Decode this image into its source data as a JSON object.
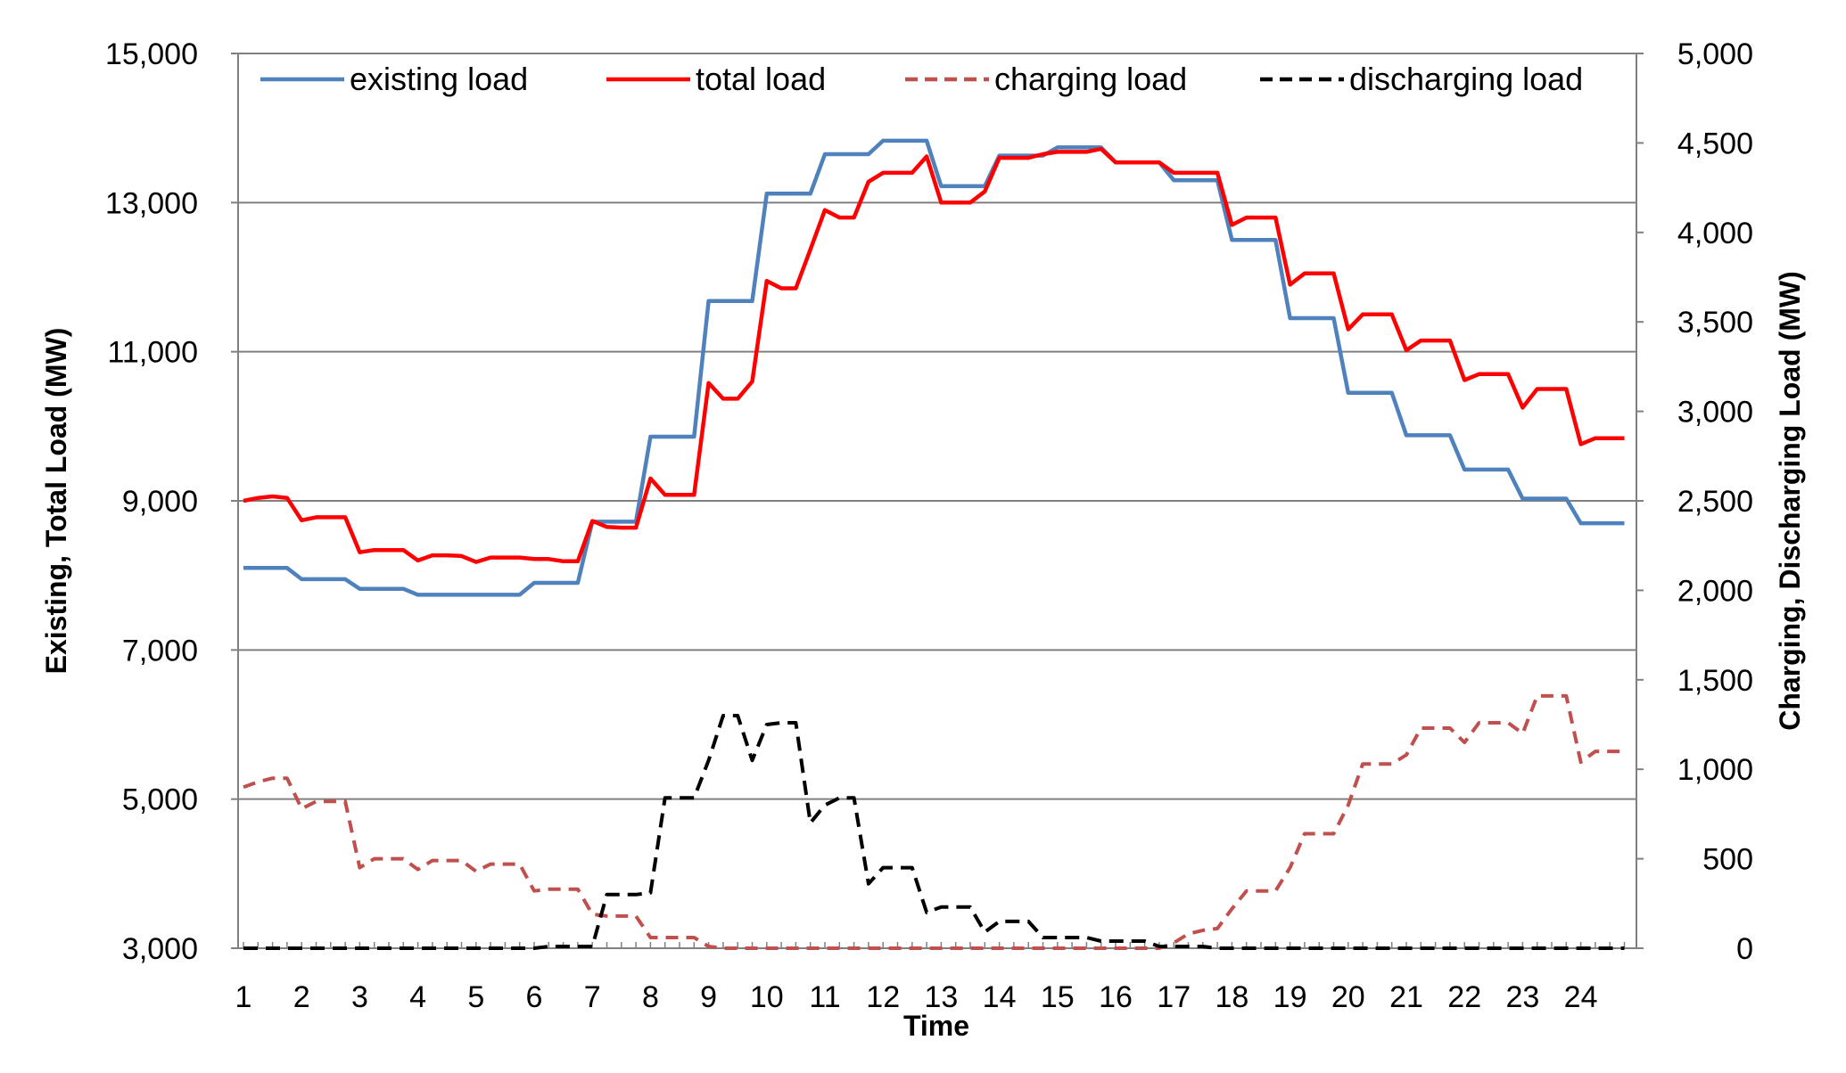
{
  "chart_data": {
    "type": "line",
    "xlabel": "Time",
    "ylabel_left": "Existing, Total Load (MW)",
    "ylabel_right": "Charging, Discharging Load (MW)",
    "x_tick_labels": [
      "1",
      "2",
      "3",
      "4",
      "5",
      "6",
      "7",
      "8",
      "9",
      "10",
      "11",
      "12",
      "13",
      "14",
      "15",
      "16",
      "17",
      "18",
      "19",
      "20",
      "21",
      "22",
      "23",
      "24"
    ],
    "ylim_left": [
      3000,
      15000
    ],
    "ylim_right": [
      0,
      5000
    ],
    "yticks_left": [
      "3,000",
      "5,000",
      "7,000",
      "9,000",
      "11,000",
      "13,000",
      "15,000"
    ],
    "yticks_right": [
      "0",
      "500",
      "1,000",
      "1,500",
      "2,000",
      "2,500",
      "3,000",
      "3,500",
      "4,000",
      "4,500",
      "5,000"
    ],
    "grid": true,
    "legend_position": "top",
    "x": [
      1.0,
      1.25,
      1.5,
      1.75,
      2.0,
      2.25,
      2.5,
      2.75,
      3.0,
      3.25,
      3.5,
      3.75,
      4.0,
      4.25,
      4.5,
      4.75,
      5.0,
      5.25,
      5.5,
      5.75,
      6.0,
      6.25,
      6.5,
      6.75,
      7.0,
      7.25,
      7.5,
      7.75,
      8.0,
      8.25,
      8.5,
      8.75,
      9.0,
      9.25,
      9.5,
      9.75,
      10.0,
      10.25,
      10.5,
      10.75,
      11.0,
      11.25,
      11.5,
      11.75,
      12.0,
      12.25,
      12.5,
      12.75,
      13.0,
      13.25,
      13.5,
      13.75,
      14.0,
      14.25,
      14.5,
      14.75,
      15.0,
      15.25,
      15.5,
      15.75,
      16.0,
      16.25,
      16.5,
      16.75,
      17.0,
      17.25,
      17.5,
      17.75,
      18.0,
      18.25,
      18.5,
      18.75,
      19.0,
      19.25,
      19.5,
      19.75,
      20.0,
      20.25,
      20.5,
      20.75,
      21.0,
      21.25,
      21.5,
      21.75,
      22.0,
      22.25,
      22.5,
      22.75,
      23.0,
      23.25,
      23.5,
      23.75,
      24.0,
      24.25,
      24.5,
      24.75
    ],
    "series": [
      {
        "name": "existing load",
        "axis": "left",
        "color": "#4f81bd",
        "dash": "solid",
        "values": [
          8100,
          8100,
          8100,
          8100,
          7950,
          7950,
          7950,
          7950,
          7820,
          7820,
          7820,
          7820,
          7740,
          7740,
          7740,
          7740,
          7740,
          7740,
          7740,
          7740,
          7900,
          7900,
          7900,
          7900,
          8720,
          8720,
          8720,
          8720,
          9860,
          9860,
          9860,
          9860,
          11680,
          11680,
          11680,
          11680,
          13120,
          13120,
          13120,
          13120,
          13650,
          13650,
          13650,
          13650,
          13830,
          13830,
          13830,
          13830,
          13220,
          13220,
          13220,
          13220,
          13630,
          13630,
          13630,
          13630,
          13740,
          13740,
          13740,
          13740,
          13540,
          13540,
          13540,
          13540,
          13300,
          13300,
          13300,
          13300,
          12500,
          12500,
          12500,
          12500,
          11450,
          11450,
          11450,
          11450,
          10450,
          10450,
          10450,
          10450,
          9880,
          9880,
          9880,
          9880,
          9420,
          9420,
          9420,
          9420,
          9030,
          9030,
          9030,
          9030,
          8700,
          8700,
          8700,
          8700
        ]
      },
      {
        "name": "total load",
        "axis": "left",
        "color": "#ff0000",
        "dash": "solid",
        "values": [
          9000,
          9040,
          9060,
          9040,
          8740,
          8780,
          8780,
          8780,
          8310,
          8340,
          8340,
          8340,
          8200,
          8270,
          8270,
          8260,
          8180,
          8240,
          8240,
          8240,
          8220,
          8220,
          8190,
          8190,
          8730,
          8650,
          8640,
          8640,
          9300,
          9080,
          9080,
          9080,
          10580,
          10370,
          10370,
          10600,
          11950,
          11850,
          11850,
          12370,
          12900,
          12800,
          12800,
          13280,
          13400,
          13400,
          13400,
          13620,
          13000,
          13000,
          13000,
          13150,
          13600,
          13600,
          13600,
          13650,
          13680,
          13680,
          13680,
          13720,
          13540,
          13540,
          13540,
          13540,
          13400,
          13400,
          13400,
          13400,
          12700,
          12800,
          12800,
          12800,
          11900,
          12050,
          12050,
          12050,
          11300,
          11500,
          11500,
          11500,
          11020,
          11150,
          11150,
          11150,
          10620,
          10700,
          10700,
          10700,
          10250,
          10500,
          10500,
          10500,
          9760,
          9840,
          9840,
          9840
        ]
      },
      {
        "name": "charging load",
        "axis": "right",
        "color": "#c0504d",
        "dash": "dashed",
        "values": [
          900,
          930,
          950,
          950,
          780,
          820,
          820,
          820,
          450,
          500,
          500,
          500,
          440,
          490,
          490,
          490,
          430,
          470,
          470,
          470,
          320,
          330,
          330,
          330,
          190,
          180,
          180,
          180,
          60,
          60,
          60,
          60,
          10,
          0,
          0,
          0,
          0,
          0,
          0,
          0,
          0,
          0,
          0,
          0,
          0,
          0,
          0,
          0,
          0,
          0,
          0,
          0,
          0,
          0,
          0,
          0,
          0,
          0,
          0,
          0,
          0,
          0,
          0,
          0,
          30,
          80,
          100,
          110,
          220,
          320,
          320,
          320,
          450,
          640,
          640,
          640,
          800,
          1030,
          1030,
          1030,
          1080,
          1230,
          1230,
          1230,
          1150,
          1260,
          1260,
          1260,
          1200,
          1410,
          1410,
          1410,
          1040,
          1100,
          1100,
          1100
        ]
      },
      {
        "name": "discharging load",
        "axis": "right",
        "color": "#000000",
        "dash": "dashed",
        "values": [
          0,
          0,
          0,
          0,
          0,
          0,
          0,
          0,
          0,
          0,
          0,
          0,
          0,
          0,
          0,
          0,
          0,
          0,
          0,
          0,
          0,
          10,
          10,
          10,
          10,
          300,
          300,
          300,
          310,
          840,
          840,
          840,
          1050,
          1300,
          1300,
          1050,
          1250,
          1260,
          1260,
          700,
          800,
          840,
          840,
          360,
          450,
          450,
          450,
          200,
          230,
          230,
          230,
          90,
          150,
          150,
          150,
          60,
          60,
          60,
          60,
          40,
          40,
          40,
          40,
          10,
          10,
          10,
          10,
          0,
          0,
          0,
          0,
          0,
          0,
          0,
          0,
          0,
          0,
          0,
          0,
          0,
          0,
          0,
          0,
          0,
          0,
          0,
          0,
          0,
          0,
          0,
          0,
          0,
          0,
          0,
          0,
          0
        ]
      }
    ]
  }
}
